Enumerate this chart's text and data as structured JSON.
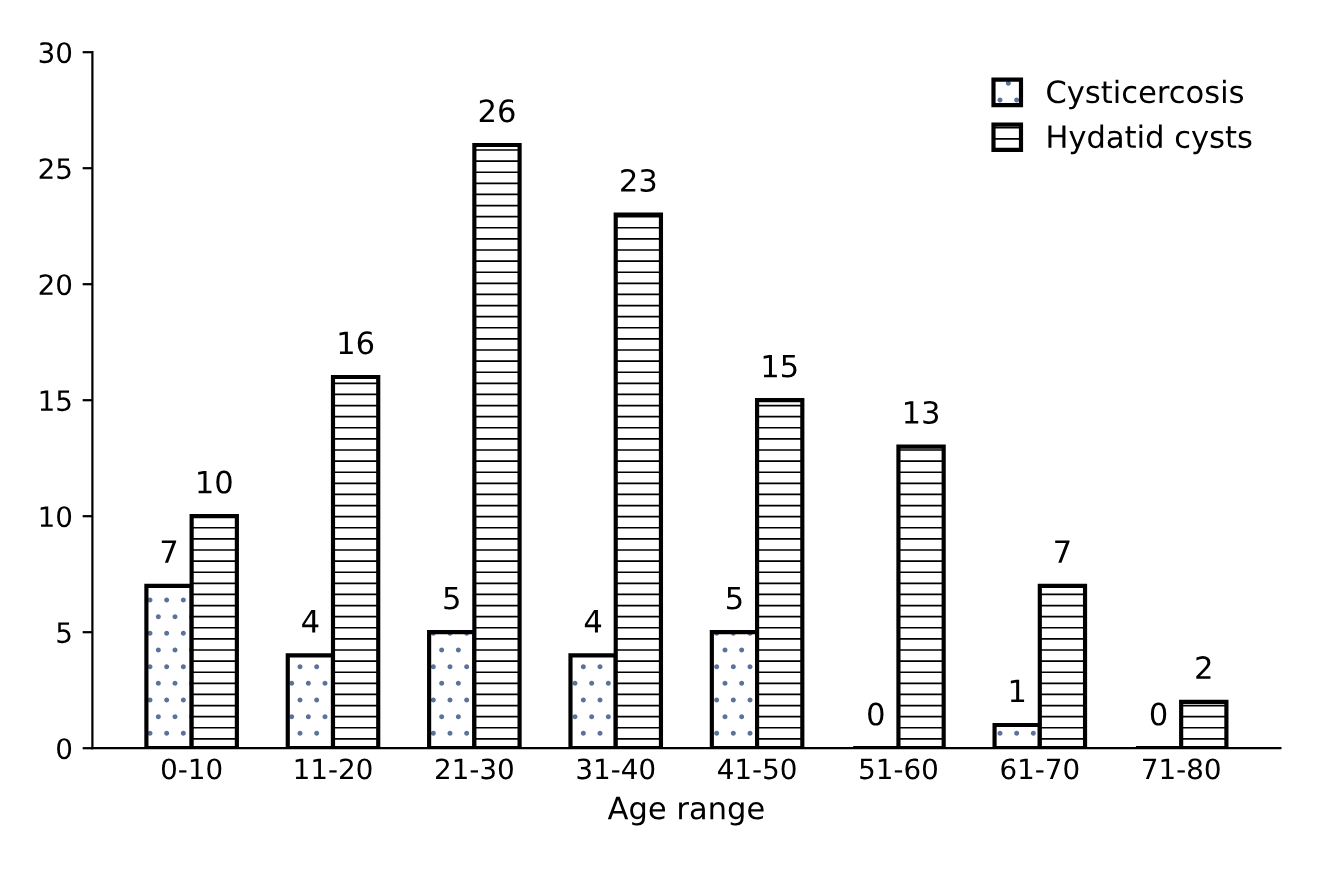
{
  "chart_data": {
    "type": "bar",
    "xlabel": "Age range",
    "categories": [
      "0-10",
      "11-20",
      "21-30",
      "31-40",
      "41-50",
      "51-60",
      "61-70",
      "71-80"
    ],
    "series": [
      {
        "name": "Cysticercosis",
        "color": "#000000",
        "values": [
          7,
          4,
          5,
          4,
          5,
          0,
          1,
          0
        ]
      },
      {
        "name": "Hydatid cysts",
        "color": "#000000",
        "values": [
          10,
          16,
          26,
          23,
          15,
          13,
          7,
          2
        ]
      }
    ],
    "ylim": [
      0,
      30
    ],
    "yticks": [
      0,
      5,
      10,
      15,
      20,
      25,
      30
    ],
    "grid": false,
    "legend": "top right",
    "data_labels": true
  }
}
